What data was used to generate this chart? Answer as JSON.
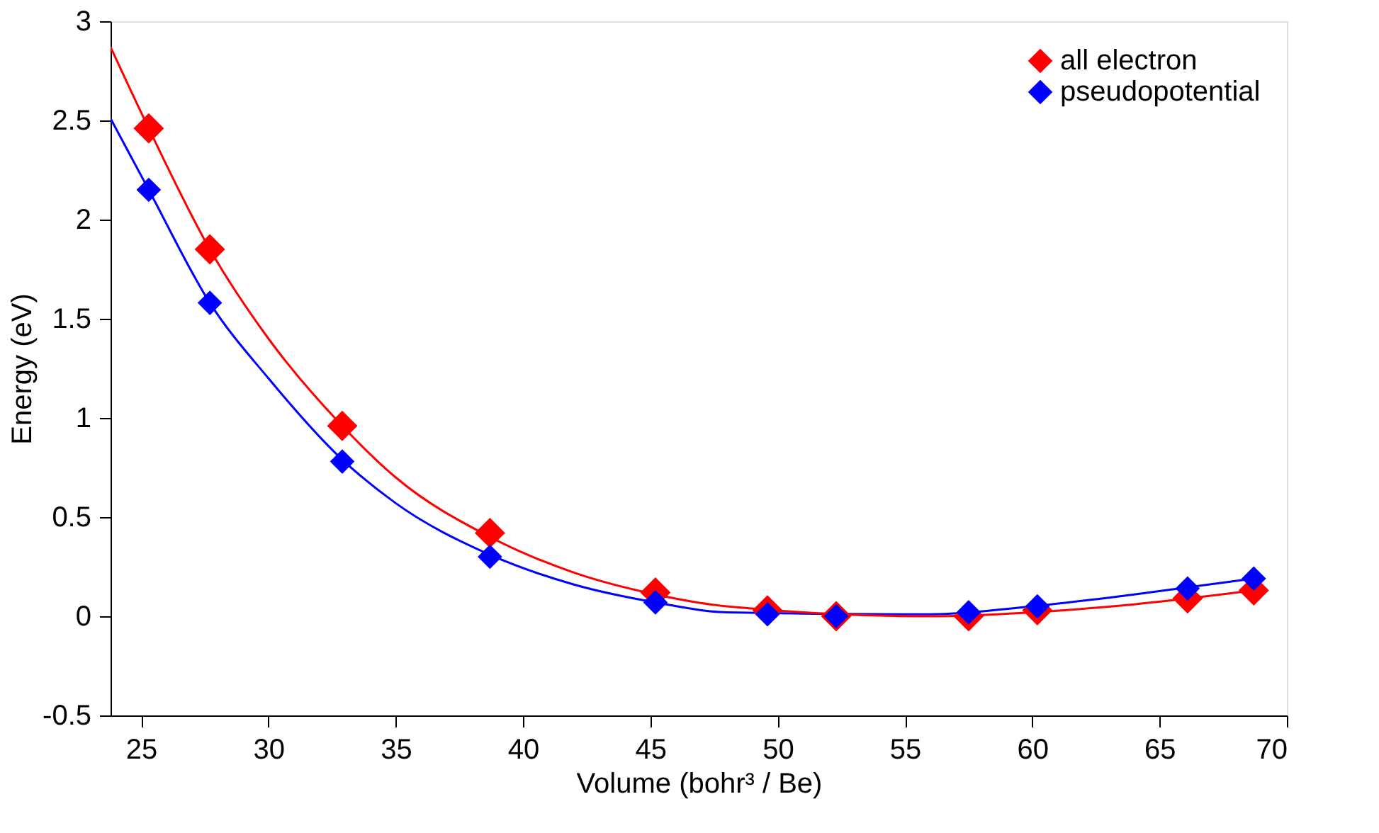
{
  "chart_data": {
    "type": "scatter",
    "xlabel": "Volume (bohr³ / Be)",
    "ylabel": "Energy (eV)",
    "xlim": [
      23.8,
      70
    ],
    "xticks": [
      25,
      30,
      35,
      40,
      45,
      50,
      55,
      60,
      65,
      70
    ],
    "ylim": [
      -0.5,
      3
    ],
    "yticks": [
      -0.5,
      0,
      0.5,
      1,
      1.5,
      2,
      2.5,
      3
    ],
    "grid": false,
    "legend": "top right",
    "marker": "diamond",
    "series": [
      {
        "type": "line",
        "marker": "none",
        "color": "#0000ff",
        "x": [
          23.8,
          25.3,
          27.7,
          30,
          32.9,
          35,
          38.7,
          42,
          45.2,
          48,
          56,
          60,
          64,
          68.7
        ],
        "values": [
          2.51,
          2.15,
          1.58,
          1.2,
          0.79,
          0.57,
          0.31,
          0.16,
          0.07,
          0.02,
          0.01,
          0.05,
          0.11,
          0.19
        ]
      },
      {
        "type": "line",
        "marker": "none",
        "color": "#ff0000",
        "x": [
          23.8,
          25.3,
          27.7,
          30,
          32.9,
          35,
          38.7,
          42,
          45.2,
          48,
          56,
          60,
          64,
          68.7
        ],
        "values": [
          2.87,
          2.46,
          1.85,
          1.4,
          0.96,
          0.7,
          0.4,
          0.22,
          0.11,
          0.05,
          0.0,
          0.02,
          0.06,
          0.13
        ]
      },
      {
        "name": "all electron",
        "color": "#ff0000",
        "x": [
          25.3,
          27.7,
          32.9,
          38.7,
          45.2,
          49.6,
          52.3,
          57.5,
          60.2,
          66.1,
          68.7
        ],
        "values": [
          2.46,
          1.85,
          0.96,
          0.42,
          0.12,
          0.03,
          0.0,
          0.0,
          0.03,
          0.09,
          0.13
        ]
      },
      {
        "name": "pseudopotential",
        "color": "#0000ff",
        "x": [
          25.3,
          27.7,
          32.9,
          38.7,
          45.2,
          49.6,
          52.3,
          57.5,
          60.2,
          66.1,
          68.7
        ],
        "values": [
          2.15,
          1.58,
          0.78,
          0.3,
          0.07,
          0.01,
          0.0,
          0.02,
          0.05,
          0.14,
          0.19
        ]
      }
    ]
  }
}
